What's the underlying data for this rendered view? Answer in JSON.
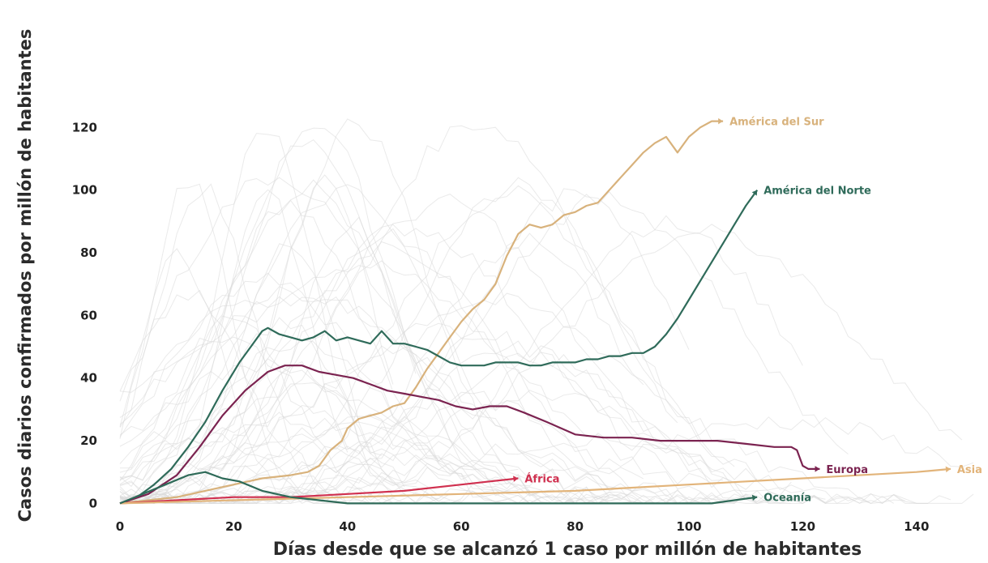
{
  "chart_data": {
    "type": "line",
    "title": "",
    "xlabel": "Días desde que se alcanzó 1 caso por millón de habitantes",
    "ylabel": "Casos diarios confirmados por millón de habitantes",
    "xlim": [
      0,
      152
    ],
    "ylim": [
      -3,
      140
    ],
    "xticks": [
      0,
      20,
      40,
      60,
      80,
      100,
      120,
      140
    ],
    "yticks": [
      0,
      20,
      40,
      60,
      80,
      100,
      120
    ],
    "grid": false,
    "legend": "direct labels at line ends",
    "background_lines": "many light grey country lines",
    "series": [
      {
        "name": "América del Sur",
        "color": "#d8b27c",
        "points": [
          [
            0,
            0
          ],
          [
            5,
            1
          ],
          [
            10,
            2
          ],
          [
            15,
            4
          ],
          [
            20,
            6
          ],
          [
            25,
            8
          ],
          [
            30,
            9
          ],
          [
            33,
            10
          ],
          [
            35,
            12
          ],
          [
            37,
            17
          ],
          [
            39,
            20
          ],
          [
            40,
            24
          ],
          [
            42,
            27
          ],
          [
            44,
            28
          ],
          [
            46,
            29
          ],
          [
            48,
            31
          ],
          [
            50,
            32
          ],
          [
            52,
            37
          ],
          [
            54,
            43
          ],
          [
            56,
            48
          ],
          [
            58,
            53
          ],
          [
            60,
            58
          ],
          [
            62,
            62
          ],
          [
            64,
            65
          ],
          [
            66,
            70
          ],
          [
            68,
            79
          ],
          [
            70,
            86
          ],
          [
            72,
            89
          ],
          [
            74,
            88
          ],
          [
            76,
            89
          ],
          [
            78,
            92
          ],
          [
            80,
            93
          ],
          [
            82,
            95
          ],
          [
            84,
            96
          ],
          [
            86,
            100
          ],
          [
            88,
            104
          ],
          [
            90,
            108
          ],
          [
            92,
            112
          ],
          [
            94,
            115
          ],
          [
            96,
            117
          ],
          [
            98,
            112
          ],
          [
            100,
            117
          ],
          [
            102,
            120
          ],
          [
            104,
            122
          ],
          [
            106,
            122
          ]
        ]
      },
      {
        "name": "América del Norte",
        "color": "#2f6b5a",
        "points": [
          [
            0,
            0
          ],
          [
            3,
            2
          ],
          [
            6,
            6
          ],
          [
            9,
            11
          ],
          [
            12,
            18
          ],
          [
            15,
            26
          ],
          [
            18,
            36
          ],
          [
            21,
            45
          ],
          [
            23,
            50
          ],
          [
            25,
            55
          ],
          [
            26,
            56
          ],
          [
            28,
            54
          ],
          [
            30,
            53
          ],
          [
            32,
            52
          ],
          [
            34,
            53
          ],
          [
            36,
            55
          ],
          [
            38,
            52
          ],
          [
            40,
            53
          ],
          [
            42,
            52
          ],
          [
            44,
            51
          ],
          [
            46,
            55
          ],
          [
            48,
            51
          ],
          [
            50,
            51
          ],
          [
            52,
            50
          ],
          [
            54,
            49
          ],
          [
            56,
            47
          ],
          [
            58,
            45
          ],
          [
            60,
            44
          ],
          [
            62,
            44
          ],
          [
            64,
            44
          ],
          [
            66,
            45
          ],
          [
            68,
            45
          ],
          [
            70,
            45
          ],
          [
            72,
            44
          ],
          [
            74,
            44
          ],
          [
            76,
            45
          ],
          [
            78,
            45
          ],
          [
            80,
            45
          ],
          [
            82,
            46
          ],
          [
            84,
            46
          ],
          [
            86,
            47
          ],
          [
            88,
            47
          ],
          [
            90,
            48
          ],
          [
            92,
            48
          ],
          [
            94,
            50
          ],
          [
            96,
            54
          ],
          [
            98,
            59
          ],
          [
            100,
            65
          ],
          [
            102,
            71
          ],
          [
            104,
            77
          ],
          [
            106,
            83
          ],
          [
            108,
            89
          ],
          [
            110,
            95
          ],
          [
            112,
            100
          ]
        ]
      },
      {
        "name": "Europa",
        "color": "#7b2350",
        "points": [
          [
            0,
            0
          ],
          [
            5,
            3
          ],
          [
            10,
            9
          ],
          [
            14,
            18
          ],
          [
            18,
            28
          ],
          [
            22,
            36
          ],
          [
            26,
            42
          ],
          [
            29,
            44
          ],
          [
            32,
            44
          ],
          [
            35,
            42
          ],
          [
            38,
            41
          ],
          [
            41,
            40
          ],
          [
            44,
            38
          ],
          [
            47,
            36
          ],
          [
            50,
            35
          ],
          [
            53,
            34
          ],
          [
            56,
            33
          ],
          [
            59,
            31
          ],
          [
            62,
            30
          ],
          [
            65,
            31
          ],
          [
            68,
            31
          ],
          [
            71,
            29
          ],
          [
            75,
            26
          ],
          [
            80,
            22
          ],
          [
            85,
            21
          ],
          [
            90,
            21
          ],
          [
            95,
            20
          ],
          [
            100,
            20
          ],
          [
            105,
            20
          ],
          [
            110,
            19
          ],
          [
            115,
            18
          ],
          [
            118,
            18
          ],
          [
            119,
            17
          ],
          [
            120,
            12
          ],
          [
            121,
            11
          ],
          [
            123,
            11
          ]
        ]
      },
      {
        "name": "África",
        "color": "#d0304f",
        "points": [
          [
            0,
            0
          ],
          [
            10,
            1
          ],
          [
            20,
            2
          ],
          [
            30,
            2
          ],
          [
            40,
            3
          ],
          [
            50,
            4
          ],
          [
            60,
            6
          ],
          [
            65,
            7
          ],
          [
            70,
            8
          ]
        ]
      },
      {
        "name": "Asia",
        "color": "#e2b47a",
        "points": [
          [
            0,
            0
          ],
          [
            20,
            1
          ],
          [
            40,
            2
          ],
          [
            60,
            3
          ],
          [
            80,
            4
          ],
          [
            100,
            6
          ],
          [
            120,
            8
          ],
          [
            140,
            10
          ],
          [
            146,
            11
          ]
        ]
      },
      {
        "name": "Oceanía",
        "color": "#2e6a58",
        "points": [
          [
            0,
            0
          ],
          [
            4,
            3
          ],
          [
            8,
            6
          ],
          [
            12,
            9
          ],
          [
            15,
            10
          ],
          [
            18,
            8
          ],
          [
            21,
            7
          ],
          [
            25,
            4
          ],
          [
            30,
            2
          ],
          [
            35,
            1
          ],
          [
            40,
            0
          ],
          [
            60,
            0
          ],
          [
            80,
            0
          ],
          [
            100,
            0
          ],
          [
            104,
            0
          ],
          [
            108,
            1
          ],
          [
            112,
            2
          ]
        ]
      }
    ]
  }
}
